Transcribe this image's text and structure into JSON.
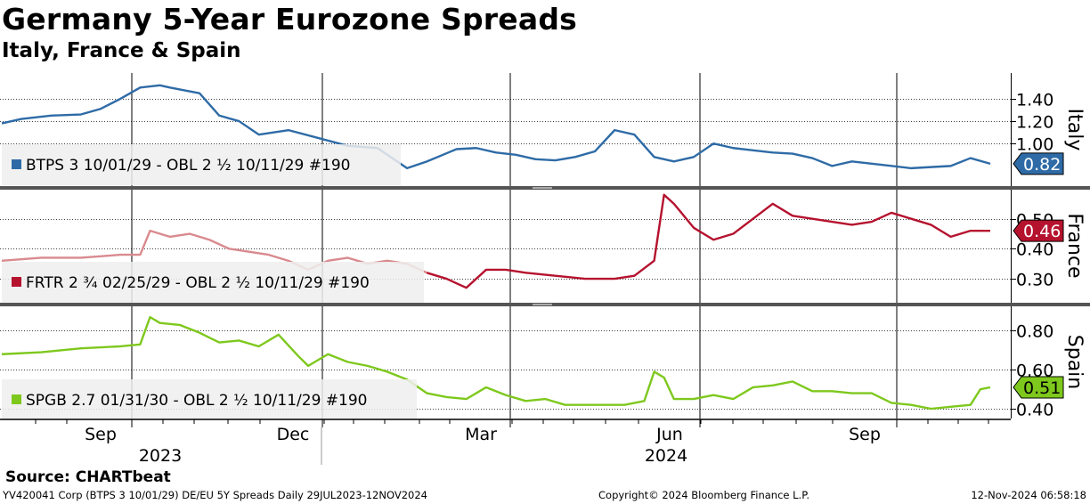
{
  "header": {
    "title": "Germany 5-Year Eurozone Spreads",
    "subtitle": "Italy, France & Spain"
  },
  "footer": {
    "source": "Source: CHARTbeat",
    "info": "YV420041 Corp (BTPS 3 10/01/29) DE/EU 5Y Spreads  Daily 29JUL2023-12NOV2024",
    "copyright": "Copyright© 2024 Bloomberg Finance L.P.",
    "timestamp": "12-Nov-2024 06:58:18"
  },
  "colors": {
    "italy": "#2e6ba6",
    "france": "#b5122e",
    "france_light": "#d98a8e",
    "spain": "#7ec81d"
  },
  "chart_data": [
    {
      "type": "line",
      "panel": "Italy",
      "series": [
        {
          "name": "BTPS 3 10/01/29 - OBL 2 ½ 10/11/29 #190",
          "x": [
            0,
            0.02,
            0.05,
            0.08,
            0.1,
            0.12,
            0.14,
            0.16,
            0.17,
            0.2,
            0.22,
            0.24,
            0.26,
            0.29,
            0.32,
            0.35,
            0.38,
            0.41,
            0.43,
            0.46,
            0.48,
            0.5,
            0.52,
            0.54,
            0.56,
            0.58,
            0.6,
            0.62,
            0.64,
            0.66,
            0.68,
            0.7,
            0.72,
            0.74,
            0.76,
            0.78,
            0.8,
            0.82,
            0.84,
            0.86,
            0.88,
            0.9,
            0.92,
            0.94,
            0.96,
            0.98,
            1
          ],
          "y": [
            1.18,
            1.22,
            1.25,
            1.26,
            1.31,
            1.4,
            1.5,
            1.52,
            1.5,
            1.45,
            1.25,
            1.2,
            1.08,
            1.12,
            1.05,
            0.98,
            0.96,
            0.78,
            0.84,
            0.95,
            0.96,
            0.92,
            0.9,
            0.86,
            0.85,
            0.88,
            0.93,
            1.12,
            1.08,
            0.88,
            0.84,
            0.88,
            1.0,
            0.96,
            0.94,
            0.92,
            0.91,
            0.87,
            0.8,
            0.84,
            0.82,
            0.8,
            0.78,
            0.79,
            0.8,
            0.87,
            0.82
          ]
        }
      ],
      "yticks": [
        1.0,
        1.2,
        1.4
      ],
      "ylim": [
        0.62,
        1.63
      ],
      "last_value": "0.82"
    },
    {
      "type": "line",
      "panel": "France",
      "series": [
        {
          "name": "FRTR 2 ¾ 02/25/29 - OBL 2 ½ 10/11/29 #190",
          "x": [
            0,
            0.04,
            0.08,
            0.12,
            0.14,
            0.15,
            0.17,
            0.19,
            0.21,
            0.23,
            0.25,
            0.27,
            0.29,
            0.31,
            0.33,
            0.35,
            0.37,
            0.39,
            0.41,
            0.43,
            0.45,
            0.47,
            0.49,
            0.51,
            0.53,
            0.56,
            0.59,
            0.62,
            0.64,
            0.66,
            0.67,
            0.68,
            0.7,
            0.72,
            0.74,
            0.76,
            0.78,
            0.8,
            0.82,
            0.84,
            0.86,
            0.88,
            0.9,
            0.92,
            0.94,
            0.96,
            0.98,
            1
          ],
          "y": [
            0.36,
            0.37,
            0.37,
            0.38,
            0.38,
            0.46,
            0.44,
            0.45,
            0.43,
            0.4,
            0.39,
            0.38,
            0.36,
            0.33,
            0.36,
            0.37,
            0.35,
            0.36,
            0.35,
            0.32,
            0.3,
            0.27,
            0.33,
            0.33,
            0.32,
            0.31,
            0.3,
            0.3,
            0.31,
            0.36,
            0.58,
            0.55,
            0.47,
            0.43,
            0.45,
            0.5,
            0.55,
            0.51,
            0.5,
            0.49,
            0.48,
            0.49,
            0.52,
            0.5,
            0.48,
            0.44,
            0.46,
            0.46
          ]
        }
      ],
      "light_until_x": 0.43,
      "yticks": [
        0.3,
        0.4,
        0.5
      ],
      "ylim": [
        0.22,
        0.6
      ],
      "last_value": "0.46"
    },
    {
      "type": "line",
      "panel": "Spain",
      "series": [
        {
          "name": "SPGB 2.7 01/31/30 - OBL 2 ½ 10/11/29 #190",
          "x": [
            0,
            0.04,
            0.08,
            0.12,
            0.14,
            0.15,
            0.16,
            0.18,
            0.2,
            0.22,
            0.24,
            0.26,
            0.28,
            0.3,
            0.31,
            0.33,
            0.35,
            0.37,
            0.39,
            0.41,
            0.43,
            0.45,
            0.47,
            0.49,
            0.51,
            0.53,
            0.55,
            0.57,
            0.59,
            0.61,
            0.63,
            0.65,
            0.66,
            0.67,
            0.68,
            0.7,
            0.72,
            0.74,
            0.76,
            0.78,
            0.8,
            0.82,
            0.84,
            0.86,
            0.88,
            0.9,
            0.92,
            0.94,
            0.96,
            0.98,
            0.99,
            1
          ],
          "y": [
            0.68,
            0.69,
            0.71,
            0.72,
            0.73,
            0.87,
            0.84,
            0.83,
            0.79,
            0.74,
            0.75,
            0.72,
            0.78,
            0.67,
            0.62,
            0.68,
            0.64,
            0.62,
            0.59,
            0.55,
            0.48,
            0.46,
            0.45,
            0.51,
            0.47,
            0.44,
            0.45,
            0.42,
            0.42,
            0.42,
            0.42,
            0.44,
            0.59,
            0.56,
            0.45,
            0.45,
            0.47,
            0.45,
            0.51,
            0.52,
            0.54,
            0.49,
            0.49,
            0.48,
            0.48,
            0.43,
            0.42,
            0.4,
            0.41,
            0.42,
            0.5,
            0.51
          ]
        }
      ],
      "yticks": [
        0.4,
        0.6,
        0.8
      ],
      "ylim": [
        0.35,
        0.93
      ],
      "last_value": "0.51"
    }
  ],
  "x_axis": {
    "months": [
      "Sep",
      "Dec",
      "Mar",
      "Jun",
      "Sep"
    ],
    "years": [
      "2023",
      "2024"
    ]
  },
  "axis_titles": [
    "Italy",
    "France",
    "Spain"
  ]
}
